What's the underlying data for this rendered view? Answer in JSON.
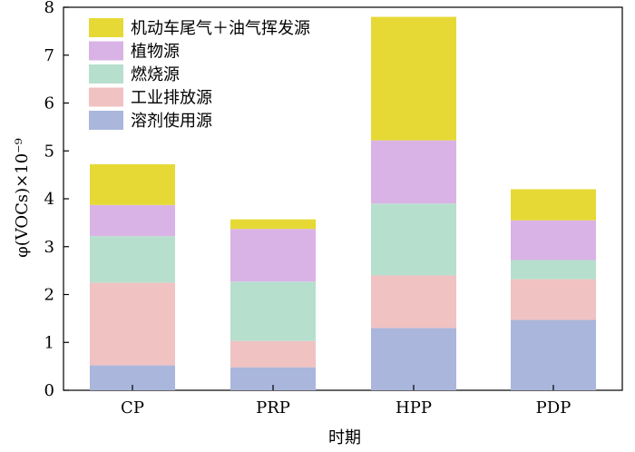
{
  "chart_data": {
    "type": "bar",
    "stacked": true,
    "categories": [
      "CP",
      "PRP",
      "HPP",
      "PDP"
    ],
    "xlabel": "时期",
    "ylabel": "φ(VOCs)×10⁻⁹",
    "ylim": [
      0,
      8
    ],
    "yticks": [
      0,
      1,
      2,
      3,
      4,
      5,
      6,
      7,
      8
    ],
    "grid": false,
    "legend_position": "top-left",
    "series": [
      {
        "name": "溶剂使用源",
        "color": "#aab6dc",
        "values": [
          0.52,
          0.48,
          1.3,
          1.47
        ]
      },
      {
        "name": "工业排放源",
        "color": "#f0c2c2",
        "values": [
          1.73,
          0.55,
          1.1,
          0.85
        ]
      },
      {
        "name": "燃烧源",
        "color": "#b7dfce",
        "values": [
          0.97,
          1.24,
          1.5,
          0.4
        ]
      },
      {
        "name": "植物源",
        "color": "#d9b3e6",
        "values": [
          0.65,
          1.1,
          1.32,
          0.83
        ]
      },
      {
        "name": "机动车尾气＋油气挥发源",
        "color": "#e6d935",
        "values": [
          0.85,
          0.2,
          2.58,
          0.65
        ]
      }
    ]
  }
}
